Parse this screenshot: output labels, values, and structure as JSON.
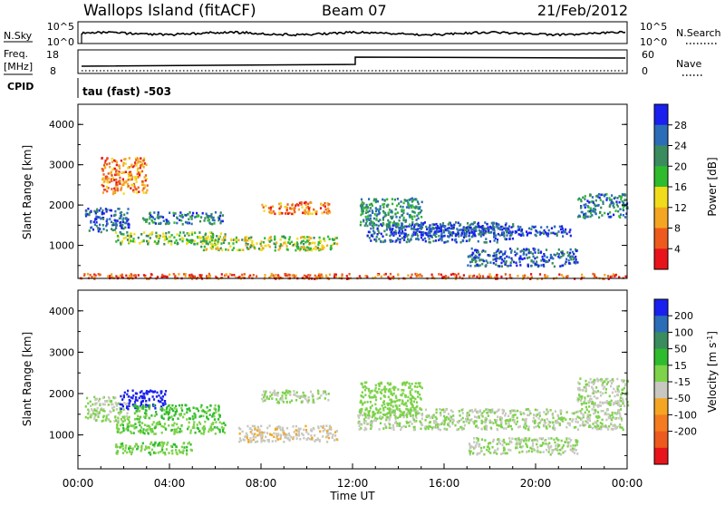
{
  "header": {
    "station": "Wallops Island (fitACF)",
    "beam": "Beam 07",
    "date": "21/Feb/2012"
  },
  "top_panels": {
    "nsky_label": "N.Sky",
    "nsky_ticks": [
      "10^5",
      "10^0"
    ],
    "nsearch_label": "N.Search",
    "nsearch_ticks": [
      "10^5",
      "10^0"
    ],
    "freq_label": "Freq.",
    "freq_unit": "[MHz]",
    "freq_ticks": [
      "18",
      "8"
    ],
    "nave_label": "Nave",
    "nave_ticks": [
      "60",
      "0"
    ],
    "cpid_label": "CPID",
    "cpid_value": "tau (fast) -503"
  },
  "chart_data": [
    {
      "type": "heatmap",
      "name": "power",
      "ylabel": "Slant Range [km]",
      "ylim": [
        180,
        4500
      ],
      "yticks": [
        "1000",
        "2000",
        "3000",
        "4000"
      ],
      "colorbar_label": "Power [dB]",
      "colorbar_ticks": [
        "4",
        "8",
        "12",
        "16",
        "20",
        "24",
        "28"
      ],
      "colorbar_range": [
        0,
        32
      ],
      "colors": [
        "#1a20ee",
        "#2c6db8",
        "#3a8c5e",
        "#2fbb2e",
        "#f0dc1a",
        "#f4a623",
        "#ee5a1d",
        "#e8141c"
      ],
      "bands": [
        {
          "x": [
            0.3,
            2.2
          ],
          "y": [
            1350,
            1950
          ],
          "v": 26
        },
        {
          "x": [
            1.0,
            3.0
          ],
          "y": [
            2300,
            3200
          ],
          "v": 8
        },
        {
          "x": [
            2.8,
            6.4
          ],
          "y": [
            1550,
            1850
          ],
          "v": 24
        },
        {
          "x": [
            1.6,
            6.4
          ],
          "y": [
            1050,
            1350
          ],
          "v": 18
        },
        {
          "x": [
            5.3,
            11.3
          ],
          "y": [
            900,
            1250
          ],
          "v": 16
        },
        {
          "x": [
            8.0,
            11.0
          ],
          "y": [
            1800,
            2100
          ],
          "v": 8
        },
        {
          "x": [
            12.6,
            19.0
          ],
          "y": [
            1100,
            1600
          ],
          "v": 26
        },
        {
          "x": [
            14.0,
            21.5
          ],
          "y": [
            1250,
            1500
          ],
          "v": 28
        },
        {
          "x": [
            12.3,
            15.0
          ],
          "y": [
            1500,
            2200
          ],
          "v": 22
        },
        {
          "x": [
            17.0,
            21.8
          ],
          "y": [
            500,
            950
          ],
          "v": 26
        },
        {
          "x": [
            21.8,
            24.0
          ],
          "y": [
            1700,
            2300
          ],
          "v": 24
        },
        {
          "x": [
            0.0,
            24.0
          ],
          "y": [
            190,
            320
          ],
          "v": 6
        }
      ]
    },
    {
      "type": "heatmap",
      "name": "velocity",
      "ylabel": "Slant Range [km]",
      "xlabel": "Time UT",
      "ylim": [
        180,
        4500
      ],
      "yticks": [
        "1000",
        "2000",
        "3000",
        "4000"
      ],
      "xticks": [
        "00:00",
        "04:00",
        "08:00",
        "12:00",
        "16:00",
        "20:00",
        "00:00"
      ],
      "colorbar_label": "Velocity [m s",
      "colorbar_label_sup": "-1",
      "colorbar_ticks": [
        "200",
        "100",
        "50",
        "15",
        "-15",
        "-50",
        "-100",
        "-200"
      ],
      "colorbar_range": [
        -250,
        250
      ],
      "colors": [
        "#1a20ee",
        "#2c6db8",
        "#3a8c5e",
        "#2fbb2e",
        "#7dd34a",
        "#c8c8c0",
        "#f4a623",
        "#f47b20",
        "#ee5a1d",
        "#e8141c"
      ],
      "bands": [
        {
          "x": [
            0.3,
            2.2
          ],
          "y": [
            1350,
            1950
          ],
          "v": 0
        },
        {
          "x": [
            1.8,
            3.8
          ],
          "y": [
            1650,
            2100
          ],
          "v": 220
        },
        {
          "x": [
            2.4,
            6.2
          ],
          "y": [
            1400,
            1750
          ],
          "v": 60
        },
        {
          "x": [
            1.6,
            6.4
          ],
          "y": [
            1050,
            1350
          ],
          "v": 40
        },
        {
          "x": [
            1.6,
            5.0
          ],
          "y": [
            550,
            850
          ],
          "v": 40
        },
        {
          "x": [
            7.0,
            11.3
          ],
          "y": [
            850,
            1250
          ],
          "v": -40
        },
        {
          "x": [
            8.0,
            11.0
          ],
          "y": [
            1800,
            2100
          ],
          "v": 0
        },
        {
          "x": [
            12.2,
            23.8
          ],
          "y": [
            1150,
            1650
          ],
          "v": 0
        },
        {
          "x": [
            12.3,
            15.0
          ],
          "y": [
            1500,
            2300
          ],
          "v": 20
        },
        {
          "x": [
            17.0,
            21.8
          ],
          "y": [
            550,
            950
          ],
          "v": 0
        },
        {
          "x": [
            21.8,
            24.0
          ],
          "y": [
            1700,
            2400
          ],
          "v": 0
        }
      ]
    }
  ]
}
